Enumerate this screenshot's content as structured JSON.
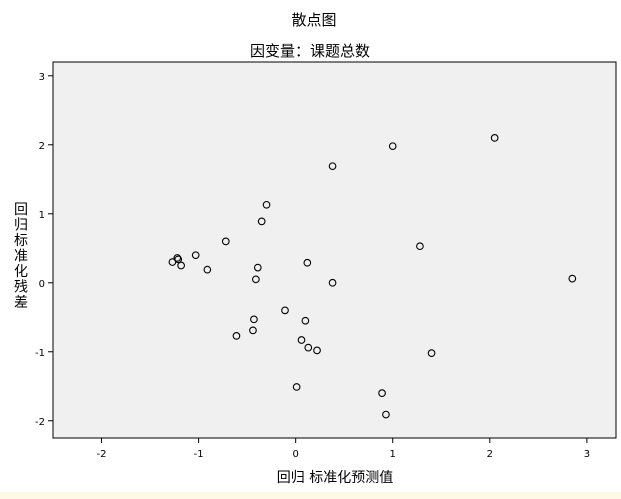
{
  "colors": {
    "plot_background": "#f0f0f0",
    "page_background": "#ffffff",
    "axis": "#000000",
    "point_stroke": "#000000",
    "bottom_strip": "#fff9e6"
  },
  "chart_data": {
    "type": "scatter",
    "title": "散点图",
    "subtitle": "因变量：课题总数",
    "xlabel": "回归 标准化预测值",
    "ylabel": "回归标准化残差",
    "xlim": [
      -2.5,
      3.3
    ],
    "ylim": [
      -2.25,
      3.2
    ],
    "xticks": [
      "-2",
      "-1",
      "0",
      "1",
      "2",
      "3"
    ],
    "yticks": [
      "-2",
      "-1",
      "0",
      "1",
      "2",
      "3"
    ],
    "grid": false,
    "legend": "none",
    "marker": "hollow-circle",
    "series": [
      {
        "points": [
          {
            "x": 2.05,
            "y": 2.1
          },
          {
            "x": 1.0,
            "y": 1.98
          },
          {
            "x": 0.38,
            "y": 1.69
          },
          {
            "x": -0.3,
            "y": 1.13
          },
          {
            "x": -0.35,
            "y": 0.89
          },
          {
            "x": -0.72,
            "y": 0.6
          },
          {
            "x": 1.28,
            "y": 0.53
          },
          {
            "x": 2.85,
            "y": 0.06
          },
          {
            "x": -1.03,
            "y": 0.4
          },
          {
            "x": -1.22,
            "y": 0.36
          },
          {
            "x": -1.21,
            "y": 0.34
          },
          {
            "x": -1.27,
            "y": 0.3
          },
          {
            "x": -1.18,
            "y": 0.25
          },
          {
            "x": -0.91,
            "y": 0.19
          },
          {
            "x": 0.12,
            "y": 0.29
          },
          {
            "x": -0.39,
            "y": 0.22
          },
          {
            "x": -0.41,
            "y": 0.05
          },
          {
            "x": 0.38,
            "y": 0.0
          },
          {
            "x": -0.11,
            "y": -0.4
          },
          {
            "x": -0.43,
            "y": -0.53
          },
          {
            "x": 0.1,
            "y": -0.55
          },
          {
            "x": -0.44,
            "y": -0.69
          },
          {
            "x": -0.61,
            "y": -0.77
          },
          {
            "x": 0.06,
            "y": -0.83
          },
          {
            "x": 0.13,
            "y": -0.94
          },
          {
            "x": 0.22,
            "y": -0.98
          },
          {
            "x": 1.4,
            "y": -1.02
          },
          {
            "x": 0.01,
            "y": -1.51
          },
          {
            "x": 0.89,
            "y": -1.6
          },
          {
            "x": 0.93,
            "y": -1.91
          }
        ]
      }
    ]
  }
}
